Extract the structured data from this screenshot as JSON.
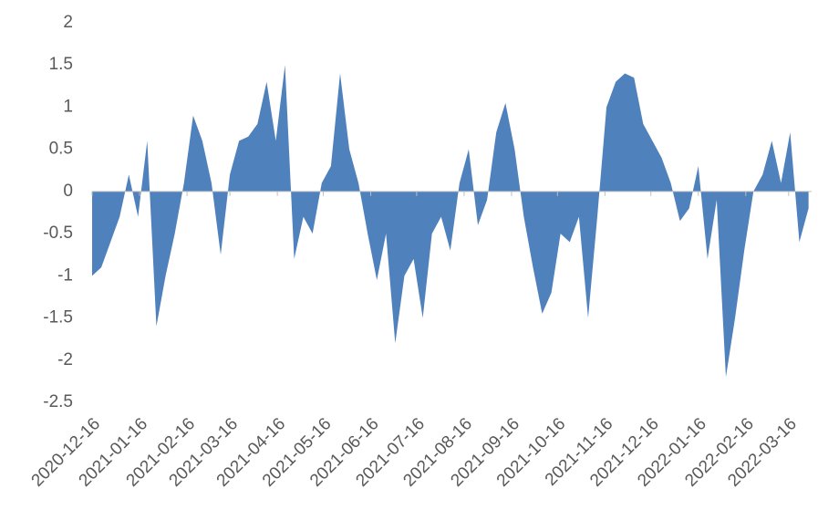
{
  "chart_data": {
    "type": "area",
    "x": [
      "2020-12-16",
      "2020-12-22",
      "2020-12-28",
      "2021-01-03",
      "2021-01-09",
      "2021-01-15",
      "2021-01-21",
      "2021-01-27",
      "2021-02-02",
      "2021-02-08",
      "2021-02-14",
      "2021-02-20",
      "2021-02-26",
      "2021-03-04",
      "2021-03-10",
      "2021-03-16",
      "2021-03-22",
      "2021-03-28",
      "2021-04-03",
      "2021-04-09",
      "2021-04-15",
      "2021-04-21",
      "2021-04-27",
      "2021-05-03",
      "2021-05-09",
      "2021-05-15",
      "2021-05-21",
      "2021-05-27",
      "2021-06-02",
      "2021-06-08",
      "2021-06-14",
      "2021-06-20",
      "2021-06-26",
      "2021-07-02",
      "2021-07-08",
      "2021-07-14",
      "2021-07-20",
      "2021-07-26",
      "2021-08-01",
      "2021-08-07",
      "2021-08-13",
      "2021-08-19",
      "2021-08-25",
      "2021-08-31",
      "2021-09-06",
      "2021-09-12",
      "2021-09-18",
      "2021-09-24",
      "2021-09-30",
      "2021-10-06",
      "2021-10-12",
      "2021-10-18",
      "2021-10-24",
      "2021-10-30",
      "2021-11-05",
      "2021-11-11",
      "2021-11-17",
      "2021-11-23",
      "2021-11-29",
      "2021-12-05",
      "2021-12-11",
      "2021-12-17",
      "2021-12-23",
      "2021-12-29",
      "2022-01-04",
      "2022-01-10",
      "2022-01-16",
      "2022-01-22",
      "2022-01-28",
      "2022-02-03",
      "2022-02-09",
      "2022-02-15",
      "2022-02-21",
      "2022-02-27",
      "2022-03-05",
      "2022-03-11",
      "2022-03-17",
      "2022-03-23",
      "2022-03-29"
    ],
    "values": [
      -1.0,
      -0.9,
      -0.6,
      -0.3,
      0.2,
      -0.3,
      0.6,
      -1.6,
      -1.0,
      -0.5,
      0.1,
      0.9,
      0.6,
      0.1,
      -0.75,
      0.2,
      0.6,
      0.65,
      0.8,
      1.3,
      0.6,
      1.5,
      -0.8,
      -0.3,
      -0.5,
      0.1,
      0.3,
      1.4,
      0.5,
      0.1,
      -0.5,
      -1.05,
      -0.5,
      -1.8,
      -1.0,
      -0.8,
      -1.5,
      -0.5,
      -0.3,
      -0.7,
      0.1,
      0.5,
      -0.4,
      -0.1,
      0.7,
      1.05,
      0.5,
      -0.3,
      -0.9,
      -1.45,
      -1.2,
      -0.5,
      -0.6,
      -0.3,
      -1.5,
      -0.3,
      1.0,
      1.3,
      1.4,
      1.35,
      0.8,
      0.6,
      0.4,
      0.1,
      -0.35,
      -0.2,
      0.3,
      -0.8,
      -0.1,
      -2.2,
      -1.5,
      -0.7,
      0.0,
      0.2,
      0.6,
      0.1,
      0.7,
      -0.6,
      -0.2
    ],
    "color": "#4f81bd",
    "xlim": [
      "2020-12-16",
      "2022-03-31"
    ],
    "xticks": [
      "2020-12-16",
      "2021-01-16",
      "2021-02-16",
      "2021-03-16",
      "2021-04-16",
      "2021-05-16",
      "2021-06-16",
      "2021-07-16",
      "2021-08-16",
      "2021-09-16",
      "2021-10-16",
      "2021-11-16",
      "2021-12-16",
      "2022-01-16",
      "2022-02-16",
      "2022-03-16"
    ],
    "ylim": [
      -2.5,
      2
    ],
    "yticks": [
      -2.5,
      -2,
      -1.5,
      -1,
      -0.5,
      0,
      0.5,
      1,
      1.5,
      2
    ],
    "grid": false
  }
}
